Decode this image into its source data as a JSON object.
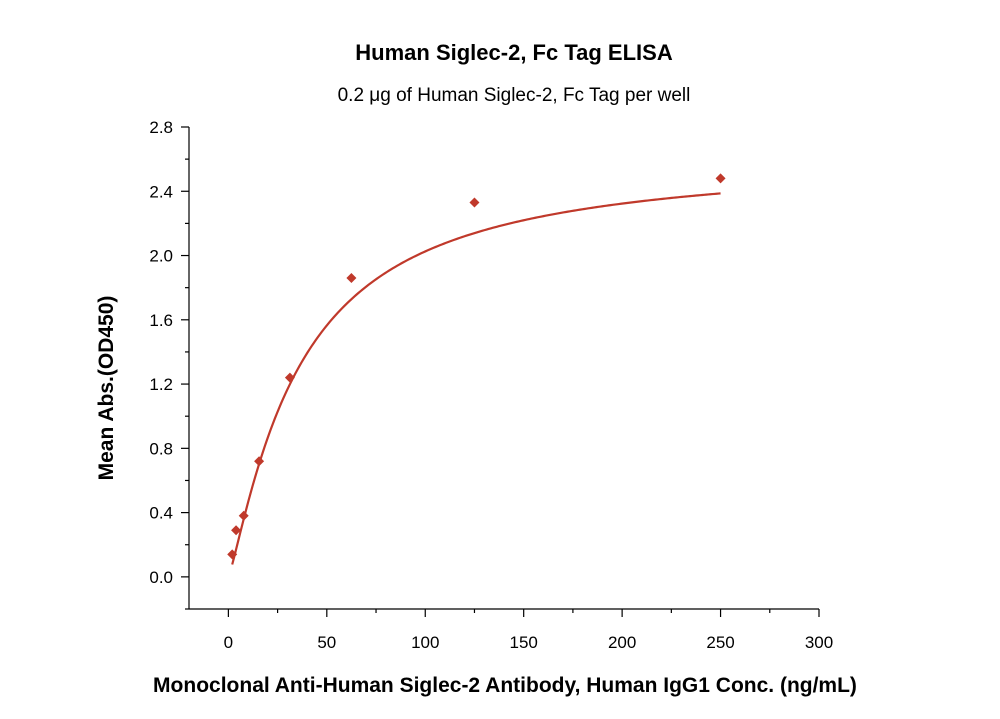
{
  "chart_data": {
    "type": "scatter",
    "title": "Human Siglec-2, Fc Tag ELISA",
    "subtitle": "0.2 μg of Human Siglec-2, Fc Tag per well",
    "xlabel": "Monoclonal Anti-Human Siglec-2 Antibody, Human IgG1 Conc. (ng/mL)",
    "ylabel": "Mean Abs.(OD450)",
    "xlim": [
      -20,
      300
    ],
    "ylim": [
      -0.2,
      2.8
    ],
    "x_ticks": [
      0,
      50,
      100,
      150,
      200,
      250,
      300
    ],
    "y_ticks": [
      0.0,
      0.4,
      0.8,
      1.2,
      1.6,
      2.0,
      2.4,
      2.8
    ],
    "x_tick_labels": [
      "0",
      "50",
      "100",
      "150",
      "200",
      "250",
      "300"
    ],
    "y_tick_labels": [
      "0.0",
      "0.4",
      "0.8",
      "1.2",
      "1.6",
      "2.0",
      "2.4",
      "2.8"
    ],
    "grid": false,
    "legend": "none",
    "series": [
      {
        "marker": "diamond",
        "color": "#c0392b",
        "fit_line": true,
        "x": [
          1.95,
          3.9,
          7.8,
          15.6,
          31.25,
          62.5,
          125,
          250
        ],
        "y": [
          0.14,
          0.29,
          0.38,
          0.72,
          1.24,
          1.86,
          2.33,
          2.48
        ]
      }
    ]
  }
}
